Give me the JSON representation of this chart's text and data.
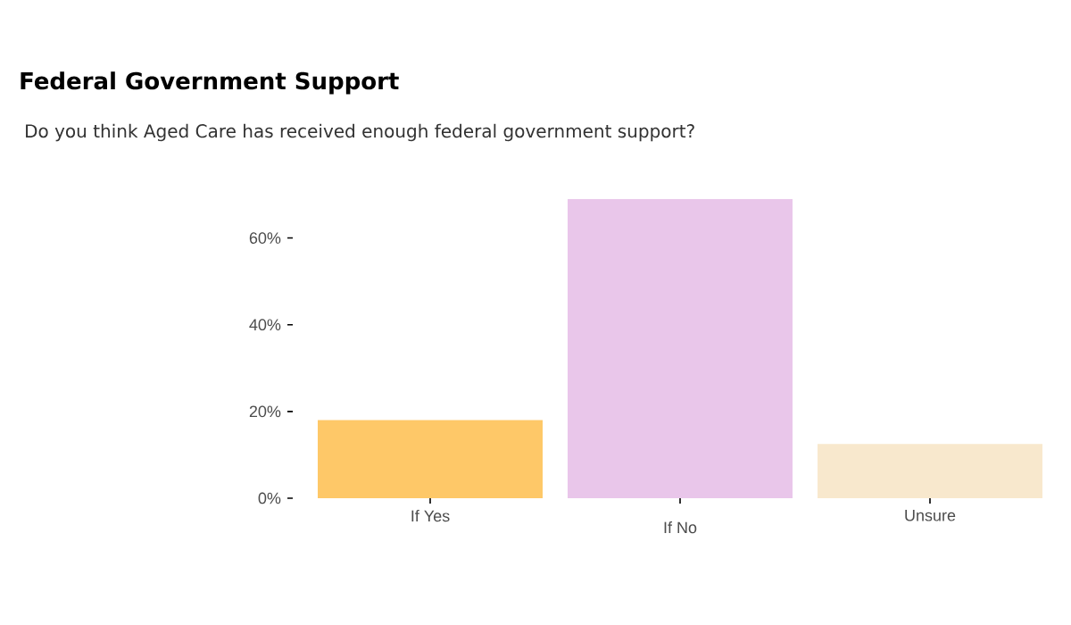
{
  "chart_data": {
    "type": "bar",
    "title": "Federal Government Support",
    "subtitle": "Do you think Aged Care has received enough federal government support?",
    "categories": [
      "If Yes",
      "If No",
      "Unsure"
    ],
    "values": [
      18,
      69,
      12.5
    ],
    "colors": [
      "#fec868",
      "#e9c6ea",
      "#f8e8cd"
    ],
    "ylim": [
      0,
      70
    ],
    "yticks": [
      {
        "value": 0,
        "label": "0%"
      },
      {
        "value": 20,
        "label": "20%"
      },
      {
        "value": 40,
        "label": "40%"
      },
      {
        "value": 60,
        "label": "60%"
      }
    ],
    "grid": false
  }
}
